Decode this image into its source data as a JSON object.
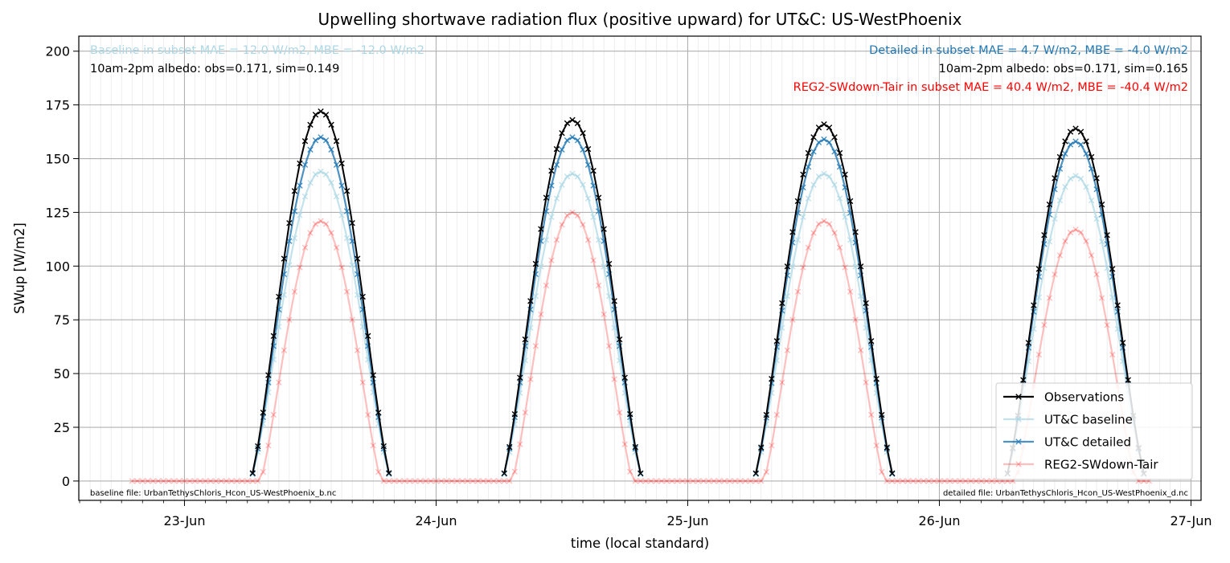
{
  "chart_data": {
    "type": "line",
    "title": "Upwelling shortwave radiation flux (positive upward) for UT&C: US-WestPhoenix",
    "xlabel": "time (local standard)",
    "ylabel": "SWup [W/m2]",
    "xlim_days": [
      22.58,
      27.04
    ],
    "ylim": [
      -9,
      207
    ],
    "yticks": [
      0,
      25,
      50,
      75,
      100,
      125,
      150,
      175,
      200
    ],
    "xticks": [
      {
        "day": 23,
        "label": "23-Jun"
      },
      {
        "day": 24,
        "label": "24-Jun"
      },
      {
        "day": 25,
        "label": "25-Jun"
      },
      {
        "day": 26,
        "label": "26-Jun"
      },
      {
        "day": 27,
        "label": "27-Jun"
      }
    ],
    "grid": true,
    "legend_position": "lower-right",
    "sampling": "half-hourly, daylight hours approx. 06:30-19:30 local standard time",
    "series": [
      {
        "name": "Observations",
        "color": "#000000",
        "opacity": 1.0,
        "peaks": [
          172,
          168,
          166,
          164
        ],
        "daylight_only": true
      },
      {
        "name": "UT&C baseline",
        "color": "#add8e6",
        "opacity": 0.75,
        "peaks": [
          144,
          143,
          143,
          142
        ],
        "daylight_only": true
      },
      {
        "name": "UT&C detailed",
        "color": "#1f77b4",
        "opacity": 0.8,
        "peaks": [
          160,
          160,
          159,
          158
        ],
        "daylight_only": true
      },
      {
        "name": "REG2-SWdown-Tair",
        "color": "#ff0000",
        "opacity": 0.25,
        "peaks": [
          121,
          125,
          121,
          117
        ],
        "daylight_only": false,
        "start_day": 22.8,
        "end_day": 26.83
      }
    ],
    "annotations": {
      "baseline_stats": "Baseline in subset MAE = 12.0 W/m2, MBE = -12.0 W/m2",
      "baseline_albedo": "10am-2pm albedo: obs=0.171, sim=0.149",
      "detailed_stats": "Detailed in subset MAE = 4.7 W/m2, MBE = -4.0 W/m2",
      "detailed_albedo": "10am-2pm albedo: obs=0.171, sim=0.165",
      "reg2_stats": "REG2-SWdown-Tair in subset MAE = 40.4 W/m2, MBE = -40.4 W/m2",
      "baseline_file": "baseline file: UrbanTethysChloris_Hcon_US-WestPhoenix_b.nc",
      "detailed_file": "detailed file: UrbanTethysChloris_Hcon_US-WestPhoenix_d.nc"
    },
    "annotation_colors": {
      "baseline_stats": "#add8e6",
      "detailed_stats": "#1f77b4",
      "reg2_stats": "#ff0000",
      "albedo": "#000000"
    }
  }
}
